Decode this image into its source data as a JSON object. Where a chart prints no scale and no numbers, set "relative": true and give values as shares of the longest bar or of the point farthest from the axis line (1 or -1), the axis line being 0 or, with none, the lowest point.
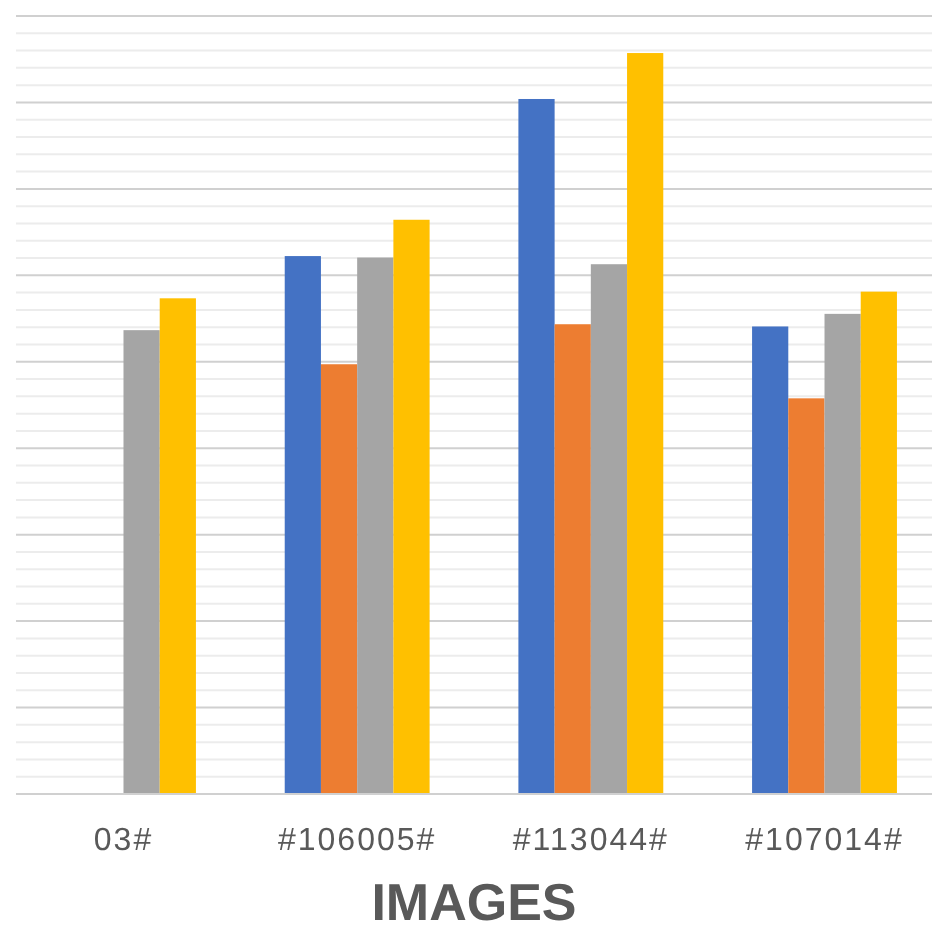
{
  "chart_data": {
    "type": "bar",
    "relative": true,
    "xlabel": "IMAGES",
    "grid": "y",
    "categories": [
      "03#",
      "#106005#",
      "#113044#",
      "#107014#"
    ],
    "series": [
      {
        "color": "#4472c4",
        "values": [
          null,
          0.726,
          0.938,
          0.631
        ]
      },
      {
        "color": "#ed7d31",
        "values": [
          null,
          0.58,
          0.634,
          0.534
        ]
      },
      {
        "color": "#a5a5a5",
        "values": [
          0.626,
          0.724,
          0.715,
          0.648
        ]
      },
      {
        "color": "#ffc000",
        "values": [
          0.669,
          0.775,
          1,
          0.678
        ]
      }
    ]
  }
}
